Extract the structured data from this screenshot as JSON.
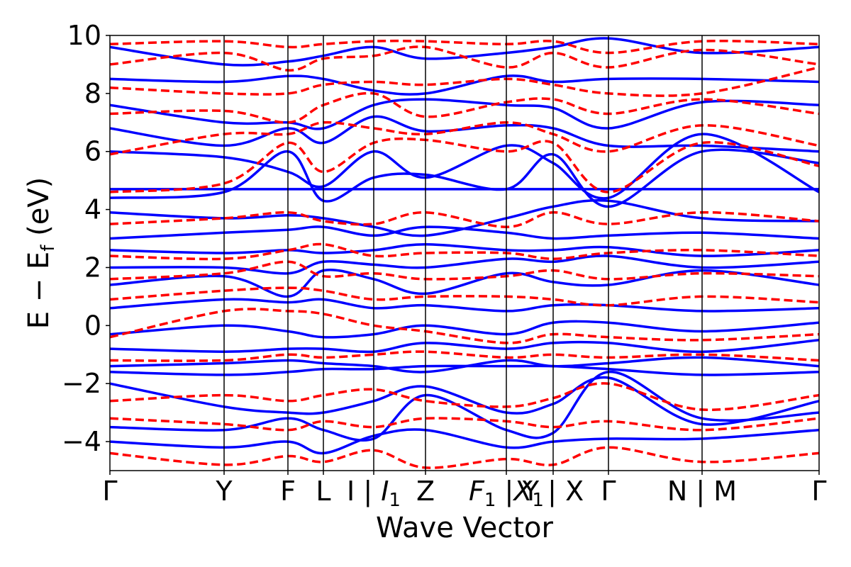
{
  "chart_data": {
    "type": "line",
    "xlabel": "Wave Vector",
    "ylabel": "E − E",
    "ylabel_sub": "f",
    "ylabel_unit": " (eV)",
    "ylim": [
      -5,
      10
    ],
    "y_ticks": [
      -4,
      -2,
      0,
      2,
      4,
      6,
      8,
      10
    ],
    "y_tick_labels": [
      "−4",
      "−2",
      "0",
      "2",
      "4",
      "6",
      "8",
      "10"
    ],
    "grid": false,
    "x_ticks": [
      {
        "label": "Γ",
        "pos": 0.0
      },
      {
        "label": "Y",
        "pos": 0.161
      },
      {
        "label": "F",
        "pos": 0.251
      },
      {
        "label": "L",
        "pos": 0.301
      },
      {
        "label": "I | I",
        "sub": "1",
        "pos": 0.372
      },
      {
        "label": "Z",
        "pos": 0.445
      },
      {
        "label": "F | X",
        "sub1": "1",
        "sub2": "1",
        "pos": 0.559
      },
      {
        "label": "Y | X",
        "pos": 0.625
      },
      {
        "label": "Γ",
        "pos": 0.703
      },
      {
        "label": "N | M",
        "pos": 0.835
      },
      {
        "label": "Γ",
        "pos": 1.0
      }
    ],
    "series": [
      {
        "color": "#0000ff",
        "style": "solid",
        "bands": [
          {
            "x": [
              0,
              0.161,
              0.251,
              0.301,
              0.372,
              0.445,
              0.559,
              0.625,
              0.703,
              0.835,
              1.0
            ],
            "y": [
              -4.0,
              -4.2,
              -4.0,
              -4.4,
              -3.8,
              -3.6,
              -4.2,
              -4.0,
              -3.9,
              -3.9,
              -3.6
            ]
          },
          {
            "x": [
              0,
              0.161,
              0.251,
              0.301,
              0.372,
              0.445,
              0.559,
              0.625,
              0.703,
              0.835,
              1.0
            ],
            "y": [
              -3.5,
              -3.6,
              -3.2,
              -3.6,
              -3.9,
              -2.4,
              -3.6,
              -3.7,
              -1.6,
              -3.2,
              -3.0
            ]
          },
          {
            "x": [
              0,
              0.161,
              0.251,
              0.301,
              0.372,
              0.445,
              0.559,
              0.625,
              0.703,
              0.835,
              1.0
            ],
            "y": [
              -2.0,
              -2.8,
              -3.0,
              -3.0,
              -2.6,
              -2.1,
              -3.0,
              -2.7,
              -1.8,
              -3.4,
              -2.6
            ]
          },
          {
            "x": [
              0,
              0.161,
              0.251,
              0.301,
              0.372,
              0.445,
              0.559,
              0.625,
              0.703,
              0.835,
              1.0
            ],
            "y": [
              -1.6,
              -1.7,
              -1.6,
              -1.5,
              -1.5,
              -1.4,
              -1.4,
              -1.4,
              -1.5,
              -1.7,
              -1.6
            ]
          },
          {
            "x": [
              0,
              0.161,
              0.251,
              0.301,
              0.372,
              0.445,
              0.559,
              0.625,
              0.703,
              0.835,
              1.0
            ],
            "y": [
              -1.4,
              -1.3,
              -1.2,
              -1.3,
              -1.4,
              -1.6,
              -1.2,
              -1.4,
              -1.3,
              -1.1,
              -1.4
            ]
          },
          {
            "x": [
              0,
              0.161,
              0.251,
              0.301,
              0.372,
              0.445,
              0.559,
              0.625,
              0.703,
              0.835,
              1.0
            ],
            "y": [
              -0.8,
              -0.9,
              -0.8,
              -0.8,
              -0.9,
              -0.6,
              -0.8,
              -0.6,
              -0.6,
              -0.9,
              -0.5
            ]
          },
          {
            "x": [
              0,
              0.161,
              0.251,
              0.301,
              0.372,
              0.445,
              0.559,
              0.625,
              0.703,
              0.835,
              1.0
            ],
            "y": [
              -0.3,
              0.0,
              -0.2,
              -0.4,
              -0.3,
              0.0,
              -0.3,
              0.1,
              0.1,
              -0.2,
              0.1
            ]
          },
          {
            "x": [
              0,
              0.161,
              0.251,
              0.301,
              0.372,
              0.445,
              0.559,
              0.625,
              0.703,
              0.835,
              1.0
            ],
            "y": [
              0.6,
              0.9,
              0.8,
              0.9,
              0.6,
              0.7,
              0.5,
              0.7,
              0.7,
              0.5,
              0.6
            ]
          },
          {
            "x": [
              0,
              0.161,
              0.251,
              0.301,
              0.372,
              0.445,
              0.559,
              0.625,
              0.703,
              0.835,
              1.0
            ],
            "y": [
              1.4,
              1.7,
              1.0,
              1.9,
              1.6,
              1.1,
              1.8,
              1.5,
              1.4,
              1.9,
              1.4
            ]
          },
          {
            "x": [
              0,
              0.161,
              0.251,
              0.301,
              0.372,
              0.445,
              0.559,
              0.625,
              0.703,
              0.835,
              1.0
            ],
            "y": [
              2.0,
              2.0,
              1.8,
              2.2,
              2.1,
              2.0,
              2.3,
              2.2,
              2.4,
              2.0,
              2.2
            ]
          },
          {
            "x": [
              0,
              0.161,
              0.251,
              0.301,
              0.372,
              0.445,
              0.559,
              0.625,
              0.703,
              0.835,
              1.0
            ],
            "y": [
              2.6,
              2.5,
              2.6,
              2.5,
              2.6,
              2.8,
              2.6,
              2.6,
              2.7,
              2.4,
              2.6
            ]
          },
          {
            "x": [
              0,
              0.161,
              0.251,
              0.301,
              0.372,
              0.445,
              0.559,
              0.625,
              0.703,
              0.835,
              1.0
            ],
            "y": [
              3.0,
              3.2,
              3.3,
              3.4,
              3.1,
              3.4,
              3.2,
              3.0,
              3.1,
              3.2,
              3.0
            ]
          },
          {
            "x": [
              0,
              0.161,
              0.251,
              0.301,
              0.372,
              0.445,
              0.559,
              0.625,
              0.703,
              0.835,
              1.0
            ],
            "y": [
              3.9,
              3.7,
              3.8,
              3.7,
              3.4,
              3.1,
              3.7,
              4.1,
              4.3,
              3.7,
              3.6
            ]
          },
          {
            "x": [
              0,
              0.161,
              0.251,
              0.301,
              0.372,
              0.445,
              0.559,
              0.625,
              0.703,
              0.835,
              1.0
            ],
            "y": [
              4.7,
              4.7,
              4.7,
              4.7,
              4.7,
              4.7,
              4.7,
              4.7,
              4.7,
              4.7,
              4.7
            ]
          },
          {
            "x": [
              0,
              0.161,
              0.251,
              0.301,
              0.372,
              0.445,
              0.559,
              0.625,
              0.703,
              0.835,
              1.0
            ],
            "y": [
              4.4,
              4.6,
              6.0,
              4.3,
              5.1,
              5.2,
              4.7,
              5.9,
              4.1,
              6.0,
              5.6
            ]
          },
          {
            "x": [
              0,
              0.161,
              0.251,
              0.301,
              0.372,
              0.445,
              0.559,
              0.625,
              0.703,
              0.835,
              1.0
            ],
            "y": [
              6.0,
              5.8,
              5.3,
              4.8,
              6.0,
              5.1,
              6.2,
              5.6,
              4.4,
              6.6,
              4.6
            ]
          },
          {
            "x": [
              0,
              0.161,
              0.251,
              0.301,
              0.372,
              0.445,
              0.559,
              0.625,
              0.703,
              0.835,
              1.0
            ],
            "y": [
              6.8,
              6.2,
              6.8,
              6.3,
              7.2,
              6.7,
              6.9,
              6.8,
              6.2,
              6.2,
              6.0
            ]
          },
          {
            "x": [
              0,
              0.161,
              0.251,
              0.301,
              0.372,
              0.445,
              0.559,
              0.625,
              0.703,
              0.835,
              1.0
            ],
            "y": [
              7.6,
              7.0,
              7.0,
              6.8,
              7.6,
              7.8,
              7.6,
              7.5,
              6.8,
              7.7,
              7.6
            ]
          },
          {
            "x": [
              0,
              0.161,
              0.251,
              0.301,
              0.372,
              0.445,
              0.559,
              0.625,
              0.703,
              0.835,
              1.0
            ],
            "y": [
              8.5,
              8.4,
              8.6,
              8.5,
              8.1,
              8.0,
              8.6,
              8.4,
              8.5,
              8.5,
              8.4
            ]
          },
          {
            "x": [
              0,
              0.161,
              0.251,
              0.301,
              0.372,
              0.445,
              0.559,
              0.625,
              0.703,
              0.835,
              1.0
            ],
            "y": [
              9.6,
              9.0,
              9.1,
              9.3,
              9.6,
              9.2,
              9.4,
              9.6,
              9.9,
              9.4,
              9.6
            ]
          }
        ]
      },
      {
        "color": "#ff0000",
        "style": "dashed",
        "bands": [
          {
            "x": [
              0,
              0.161,
              0.251,
              0.301,
              0.372,
              0.445,
              0.559,
              0.625,
              0.703,
              0.835,
              1.0
            ],
            "y": [
              -4.4,
              -4.8,
              -4.5,
              -4.7,
              -4.3,
              -4.9,
              -4.6,
              -4.8,
              -4.2,
              -4.7,
              -4.4
            ]
          },
          {
            "x": [
              0,
              0.161,
              0.251,
              0.301,
              0.372,
              0.445,
              0.559,
              0.625,
              0.703,
              0.835,
              1.0
            ],
            "y": [
              -3.2,
              -3.4,
              -3.6,
              -3.3,
              -3.5,
              -3.2,
              -3.3,
              -3.5,
              -3.3,
              -3.6,
              -3.2
            ]
          },
          {
            "x": [
              0,
              0.161,
              0.251,
              0.301,
              0.372,
              0.445,
              0.559,
              0.625,
              0.703,
              0.835,
              1.0
            ],
            "y": [
              -2.6,
              -2.4,
              -2.6,
              -2.4,
              -2.2,
              -2.6,
              -2.8,
              -2.5,
              -2.0,
              -2.9,
              -2.4
            ]
          },
          {
            "x": [
              0,
              0.161,
              0.251,
              0.301,
              0.372,
              0.445,
              0.559,
              0.625,
              0.703,
              0.835,
              1.0
            ],
            "y": [
              -1.2,
              -1.2,
              -1.0,
              -1.1,
              -1.0,
              -0.9,
              -1.1,
              -1.0,
              -1.1,
              -1.0,
              -1.2
            ]
          },
          {
            "x": [
              0,
              0.161,
              0.251,
              0.301,
              0.372,
              0.445,
              0.559,
              0.625,
              0.703,
              0.835,
              1.0
            ],
            "y": [
              -0.4,
              0.5,
              0.5,
              0.4,
              0.0,
              -0.2,
              -0.6,
              -0.3,
              -0.4,
              -0.5,
              -0.3
            ]
          },
          {
            "x": [
              0,
              0.161,
              0.251,
              0.301,
              0.372,
              0.445,
              0.559,
              0.625,
              0.703,
              0.835,
              1.0
            ],
            "y": [
              0.9,
              1.2,
              1.3,
              1.2,
              0.9,
              1.0,
              1.0,
              0.9,
              0.7,
              1.0,
              0.8
            ]
          },
          {
            "x": [
              0,
              0.161,
              0.251,
              0.301,
              0.372,
              0.445,
              0.559,
              0.625,
              0.703,
              0.835,
              1.0
            ],
            "y": [
              1.6,
              1.8,
              2.2,
              1.7,
              1.8,
              1.6,
              1.7,
              1.9,
              1.6,
              1.8,
              1.7
            ]
          },
          {
            "x": [
              0,
              0.161,
              0.251,
              0.301,
              0.372,
              0.445,
              0.559,
              0.625,
              0.703,
              0.835,
              1.0
            ],
            "y": [
              2.4,
              2.3,
              2.6,
              2.8,
              2.4,
              2.5,
              2.5,
              2.3,
              2.5,
              2.6,
              2.4
            ]
          },
          {
            "x": [
              0,
              0.161,
              0.251,
              0.301,
              0.372,
              0.445,
              0.559,
              0.625,
              0.703,
              0.835,
              1.0
            ],
            "y": [
              3.5,
              3.7,
              3.9,
              3.6,
              3.5,
              3.9,
              3.4,
              3.9,
              3.5,
              3.9,
              3.6
            ]
          },
          {
            "x": [
              0,
              0.161,
              0.251,
              0.301,
              0.372,
              0.445,
              0.559,
              0.625,
              0.703,
              0.835,
              1.0
            ],
            "y": [
              4.6,
              4.9,
              6.3,
              5.3,
              6.3,
              6.4,
              6.0,
              6.3,
              4.6,
              6.3,
              5.5
            ]
          },
          {
            "x": [
              0,
              0.161,
              0.251,
              0.301,
              0.372,
              0.445,
              0.559,
              0.625,
              0.703,
              0.835,
              1.0
            ],
            "y": [
              5.9,
              6.6,
              6.6,
              7.0,
              6.8,
              6.6,
              7.0,
              6.6,
              6.0,
              6.9,
              6.2
            ]
          },
          {
            "x": [
              0,
              0.161,
              0.251,
              0.301,
              0.372,
              0.445,
              0.559,
              0.625,
              0.703,
              0.835,
              1.0
            ],
            "y": [
              7.3,
              7.4,
              7.0,
              7.6,
              8.0,
              7.2,
              7.7,
              7.8,
              7.3,
              7.8,
              7.3
            ]
          },
          {
            "x": [
              0,
              0.161,
              0.251,
              0.301,
              0.372,
              0.445,
              0.559,
              0.625,
              0.703,
              0.835,
              1.0
            ],
            "y": [
              8.2,
              8.0,
              8.0,
              8.3,
              8.4,
              8.3,
              8.5,
              8.3,
              8.0,
              8.0,
              8.9
            ]
          },
          {
            "x": [
              0,
              0.161,
              0.251,
              0.301,
              0.372,
              0.445,
              0.559,
              0.625,
              0.703,
              0.835,
              1.0
            ],
            "y": [
              9.0,
              9.4,
              8.8,
              9.2,
              9.3,
              9.6,
              8.9,
              9.4,
              8.9,
              9.5,
              9.0
            ]
          },
          {
            "x": [
              0,
              0.161,
              0.251,
              0.301,
              0.372,
              0.445,
              0.559,
              0.625,
              0.703,
              0.835,
              1.0
            ],
            "y": [
              9.7,
              9.8,
              9.6,
              9.7,
              9.8,
              9.8,
              9.7,
              9.8,
              9.4,
              9.8,
              9.7
            ]
          }
        ]
      }
    ]
  }
}
